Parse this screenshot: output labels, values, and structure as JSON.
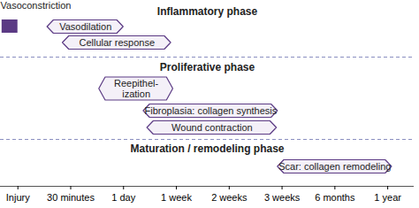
{
  "chart_data": {
    "type": "gantt",
    "color": "#5b3a84",
    "xlim": [
      -0.33,
      7.5
    ],
    "xticks": [
      {
        "value": 0,
        "label": "Injury"
      },
      {
        "value": 1,
        "label": "30 minutes"
      },
      {
        "value": 2,
        "label": "1 day"
      },
      {
        "value": 3,
        "label": "1 week"
      },
      {
        "value": 4,
        "label": "2 weeks"
      },
      {
        "value": 5,
        "label": "3 weeks"
      },
      {
        "value": 6,
        "label": "6 months"
      },
      {
        "value": 7,
        "label": "1 year"
      }
    ],
    "phases": [
      {
        "name": "Inflammatory phase",
        "bars": [
          {
            "label": "Vasoconstriction",
            "start": -0.3,
            "end": 0,
            "marker": "square"
          },
          {
            "label": "Vasodilation",
            "start": 0.56,
            "end": 2.0
          },
          {
            "label": "Cellular response",
            "start": 0.85,
            "end": 2.9
          }
        ]
      },
      {
        "name": "Proliferative phase",
        "bars": [
          {
            "label": "Reepithel-\nization",
            "start": 1.54,
            "end": 2.94
          },
          {
            "label": "Fibroplasia: collagen synthesis",
            "start": 2.38,
            "end": 4.92
          },
          {
            "label": "Wound contraction",
            "start": 2.45,
            "end": 4.9
          }
        ]
      },
      {
        "name": "Maturation / remodeling phase",
        "bars": [
          {
            "label": "Scar: collagen remodeling",
            "start": 4.92,
            "end": 7.08
          }
        ]
      }
    ]
  }
}
